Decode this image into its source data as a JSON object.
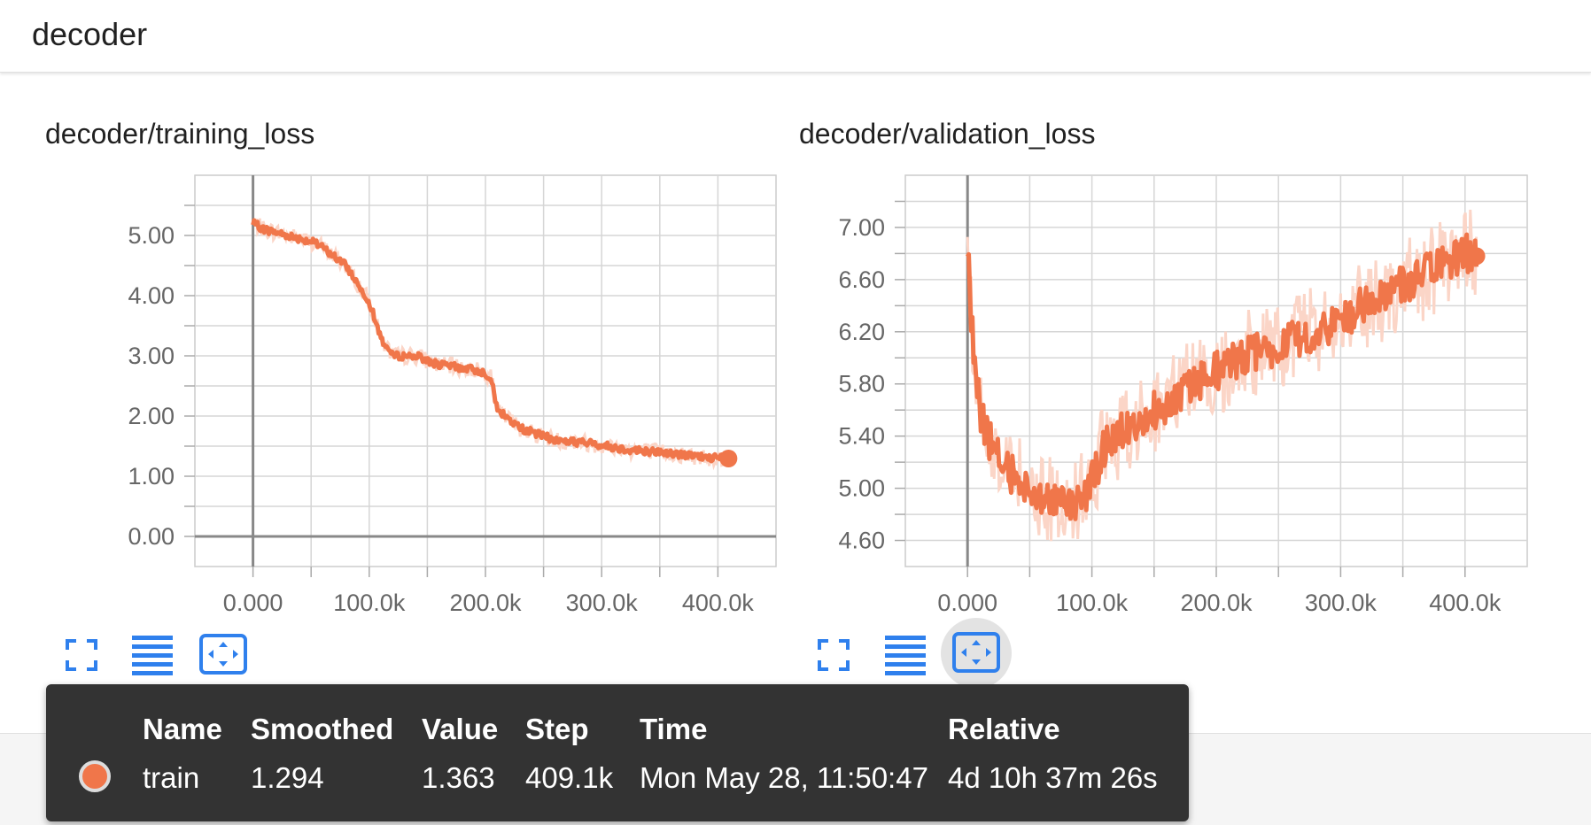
{
  "header": {
    "title": "decoder"
  },
  "colors": {
    "series": "#f0764a",
    "series_light": "#fbd5c7",
    "tooltip_bg": "#333333",
    "icon": "#2f80ed"
  },
  "charts": [
    {
      "title": "decoder/training_loss"
    },
    {
      "title": "decoder/validation_loss"
    }
  ],
  "chart_data": [
    {
      "type": "line",
      "title": "decoder/training_loss",
      "xlabel": "",
      "ylabel": "",
      "x_ticks": [
        "0.000",
        "100.0k",
        "200.0k",
        "300.0k",
        "400.0k"
      ],
      "y_ticks": [
        "0.00",
        "1.00",
        "2.00",
        "3.00",
        "4.00",
        "5.00"
      ],
      "xlim": [
        -50000,
        450000
      ],
      "ylim": [
        -0.5,
        6.0
      ],
      "grid": true,
      "series": [
        {
          "x": [
            0,
            10000,
            30000,
            50000,
            60000,
            80000,
            90000,
            100000,
            110000,
            120000,
            140000,
            160000,
            180000,
            195000,
            205000,
            210000,
            230000,
            260000,
            290000,
            320000,
            350000,
            380000,
            409100
          ],
          "y": [
            5.2,
            5.1,
            5.0,
            4.9,
            4.8,
            4.5,
            4.2,
            3.9,
            3.3,
            3.0,
            3.0,
            2.85,
            2.8,
            2.75,
            2.65,
            2.1,
            1.8,
            1.6,
            1.55,
            1.45,
            1.4,
            1.33,
            1.294
          ]
        }
      ]
    },
    {
      "type": "line",
      "title": "decoder/validation_loss",
      "xlabel": "",
      "ylabel": "",
      "x_ticks": [
        "0.000",
        "100.0k",
        "200.0k",
        "300.0k",
        "400.0k"
      ],
      "y_ticks": [
        "4.60",
        "5.00",
        "5.40",
        "5.80",
        "6.20",
        "6.60",
        "7.00"
      ],
      "xlim": [
        -50000,
        450000
      ],
      "ylim": [
        4.4,
        7.4
      ],
      "grid": true,
      "series": [
        {
          "x": [
            0,
            5000,
            10000,
            20000,
            40000,
            60000,
            80000,
            90000,
            100000,
            110000,
            130000,
            160000,
            190000,
            220000,
            250000,
            280000,
            310000,
            340000,
            370000,
            400000,
            409100
          ],
          "y": [
            6.8,
            6.0,
            5.6,
            5.3,
            5.05,
            4.95,
            4.85,
            4.9,
            5.05,
            5.3,
            5.5,
            5.65,
            5.85,
            6.0,
            6.1,
            6.2,
            6.35,
            6.5,
            6.65,
            6.8,
            6.78
          ]
        }
      ]
    }
  ],
  "tooltip": {
    "headers": {
      "name": "Name",
      "smoothed": "Smoothed",
      "value": "Value",
      "step": "Step",
      "time": "Time",
      "relative": "Relative"
    },
    "row": {
      "name": "train",
      "smoothed": "1.294",
      "value": "1.363",
      "step": "409.1k",
      "time": "Mon May 28, 11:50:47",
      "relative": "4d 10h 37m 26s"
    }
  },
  "toolbar": [
    {
      "name": "fullscreen-icon"
    },
    {
      "name": "log-scale-icon"
    },
    {
      "name": "fit-domain-icon"
    }
  ]
}
